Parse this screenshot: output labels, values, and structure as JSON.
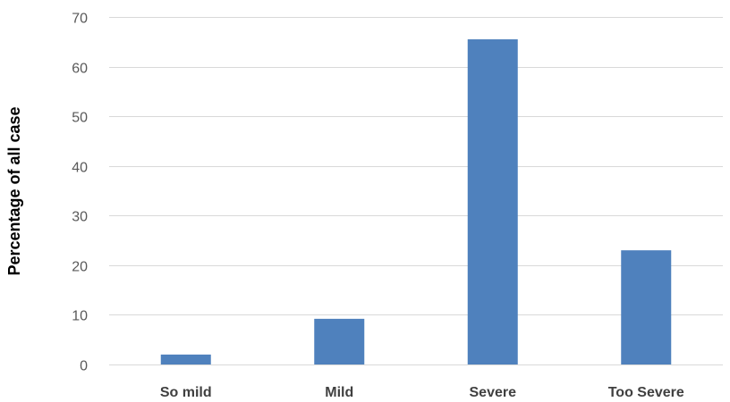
{
  "chart_data": {
    "type": "bar",
    "title": "",
    "xlabel": "",
    "ylabel": "Percentage of all case",
    "categories": [
      "So mild",
      "Mild",
      "Severe",
      "Too Severe"
    ],
    "values": [
      2,
      9.2,
      65.5,
      23
    ],
    "ylim": [
      0,
      70
    ],
    "yticks": [
      0,
      10,
      20,
      30,
      40,
      50,
      60,
      70
    ],
    "grid": true,
    "legend": "none",
    "bar_color": "#4f81bd"
  }
}
